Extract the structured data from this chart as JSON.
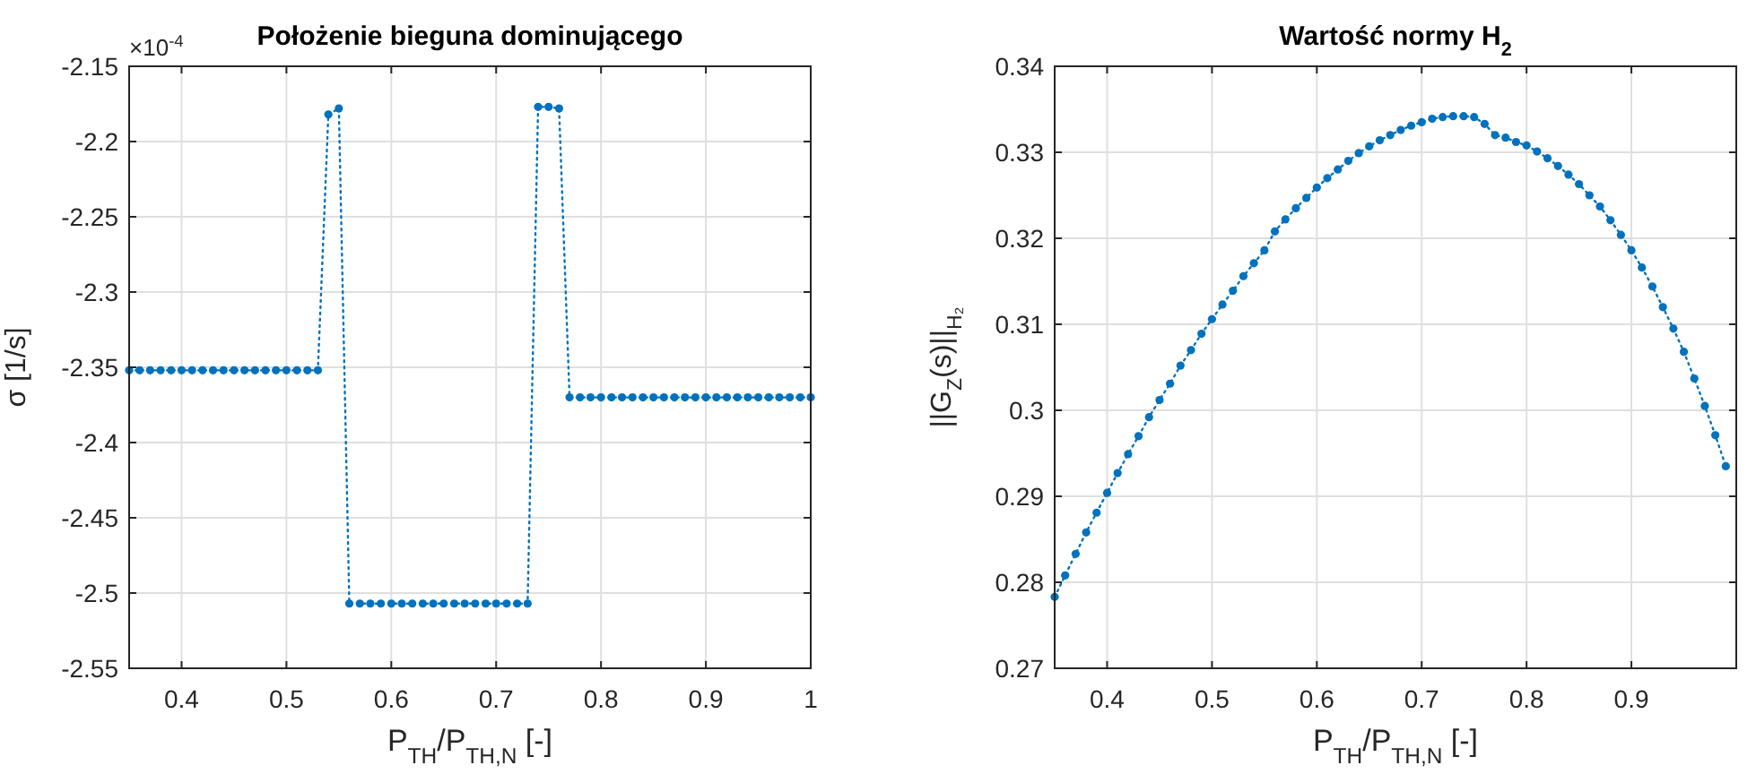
{
  "chart_data": [
    {
      "type": "line",
      "title": "Położenie bieguna dominującego",
      "xlabel": "P$_{TH}$/P$_{TH,N}$ [-]",
      "ylabel": "σ [1/s]",
      "annotations": [
        "×10$^{-4}$"
      ],
      "xlim": [
        0.35,
        1
      ],
      "xticks": [
        0.4,
        0.5,
        0.6,
        0.7,
        0.8,
        0.9,
        1
      ],
      "ylim": [
        -2.55,
        -2.15
      ],
      "yticks": [
        -2.55,
        -2.5,
        -2.45,
        -2.4,
        -2.35,
        -2.3,
        -2.25,
        -2.2,
        -2.15
      ],
      "grid": true,
      "marker": "circle",
      "line_style": "dotted",
      "x": [
        0.35,
        0.36,
        0.37,
        0.38,
        0.39,
        0.4,
        0.41,
        0.42,
        0.43,
        0.44,
        0.45,
        0.46,
        0.47,
        0.48,
        0.49,
        0.5,
        0.51,
        0.52,
        0.53,
        0.54,
        0.55,
        0.56,
        0.57,
        0.58,
        0.59,
        0.6,
        0.61,
        0.62,
        0.63,
        0.64,
        0.65,
        0.66,
        0.67,
        0.68,
        0.69,
        0.7,
        0.71,
        0.72,
        0.73,
        0.74,
        0.75,
        0.76,
        0.77,
        0.78,
        0.79,
        0.8,
        0.81,
        0.82,
        0.83,
        0.84,
        0.85,
        0.86,
        0.87,
        0.88,
        0.89,
        0.9,
        0.91,
        0.92,
        0.93,
        0.94,
        0.95,
        0.96,
        0.97,
        0.98,
        0.99,
        1
      ],
      "series": [
        {
          "color": "#0072bd",
          "values": [
            -2.352,
            -2.352,
            -2.352,
            -2.352,
            -2.352,
            -2.352,
            -2.352,
            -2.352,
            -2.352,
            -2.352,
            -2.352,
            -2.352,
            -2.352,
            -2.352,
            -2.352,
            -2.352,
            -2.352,
            -2.352,
            -2.352,
            -2.182,
            -2.178,
            -2.507,
            -2.507,
            -2.507,
            -2.507,
            -2.507,
            -2.507,
            -2.507,
            -2.507,
            -2.507,
            -2.507,
            -2.507,
            -2.507,
            -2.507,
            -2.507,
            -2.507,
            -2.507,
            -2.507,
            -2.507,
            -2.177,
            -2.177,
            -2.178,
            -2.37,
            -2.37,
            -2.37,
            -2.37,
            -2.37,
            -2.37,
            -2.37,
            -2.37,
            -2.37,
            -2.37,
            -2.37,
            -2.37,
            -2.37,
            -2.37,
            -2.37,
            -2.37,
            -2.37,
            -2.37,
            -2.37,
            -2.37,
            -2.37,
            -2.37,
            -2.37,
            -2.37
          ]
        }
      ]
    },
    {
      "type": "line",
      "title": "Wartość normy H$_{2}$",
      "xlabel": "P$_{TH}$/P$_{TH,N}$ [-]",
      "ylabel": "||G$_{Z}$(s)||$_{H₂}$",
      "xlim": [
        0.35,
        1
      ],
      "xticks": [
        0.4,
        0.5,
        0.6,
        0.7,
        0.8,
        0.9
      ],
      "ylim": [
        0.27,
        0.34
      ],
      "yticks": [
        0.27,
        0.28,
        0.29,
        0.3,
        0.31,
        0.32,
        0.33,
        0.34
      ],
      "grid": true,
      "marker": "circle",
      "line_style": "dotted",
      "x": [
        0.35,
        0.36,
        0.37,
        0.38,
        0.39,
        0.4,
        0.41,
        0.42,
        0.43,
        0.44,
        0.45,
        0.46,
        0.47,
        0.48,
        0.49,
        0.5,
        0.51,
        0.52,
        0.53,
        0.54,
        0.55,
        0.56,
        0.57,
        0.58,
        0.59,
        0.6,
        0.61,
        0.62,
        0.63,
        0.64,
        0.65,
        0.66,
        0.67,
        0.68,
        0.69,
        0.7,
        0.71,
        0.72,
        0.73,
        0.74,
        0.75,
        0.76,
        0.77,
        0.78,
        0.79,
        0.8,
        0.81,
        0.82,
        0.83,
        0.84,
        0.85,
        0.86,
        0.87,
        0.88,
        0.89,
        0.9,
        0.91,
        0.92,
        0.93,
        0.94,
        0.95,
        0.96,
        0.97,
        0.98,
        0.99
      ],
      "series": [
        {
          "color": "#0072bd",
          "values": [
            0.2783,
            0.2808,
            0.2833,
            0.2858,
            0.2881,
            0.2904,
            0.2927,
            0.2949,
            0.297,
            0.2992,
            0.3012,
            0.3031,
            0.3052,
            0.307,
            0.3089,
            0.3106,
            0.3123,
            0.3139,
            0.3156,
            0.3171,
            0.3186,
            0.3208,
            0.3222,
            0.3235,
            0.3247,
            0.3259,
            0.327,
            0.328,
            0.329,
            0.3299,
            0.3307,
            0.3314,
            0.332,
            0.3326,
            0.3331,
            0.3335,
            0.3339,
            0.3341,
            0.3342,
            0.3342,
            0.3341,
            0.3333,
            0.332,
            0.3317,
            0.3312,
            0.3308,
            0.3301,
            0.3293,
            0.3284,
            0.3274,
            0.3263,
            0.325,
            0.3237,
            0.3221,
            0.3204,
            0.3186,
            0.3166,
            0.3144,
            0.312,
            0.3095,
            0.3068,
            0.3037,
            0.3005,
            0.2971,
            0.2935
          ]
        }
      ]
    }
  ]
}
